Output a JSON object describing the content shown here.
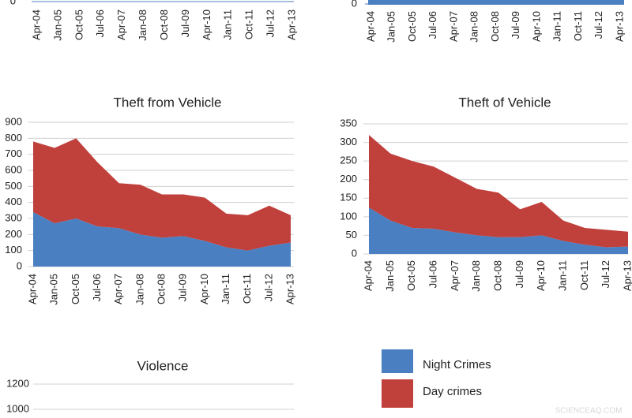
{
  "chart_data": [
    {
      "type": "area",
      "categories": [
        "Apr-04",
        "Jan-05",
        "Oct-05",
        "Jul-06",
        "Apr-07",
        "Jan-08",
        "Oct-08",
        "Jul-09",
        "Apr-10",
        "Jan-11",
        "Oct-11",
        "Jul-12",
        "Apr-13"
      ],
      "yticks": [
        0
      ]
    },
    {
      "type": "area",
      "categories": [
        "Apr-04",
        "Jan-05",
        "Oct-05",
        "Jul-06",
        "Apr-07",
        "Jan-08",
        "Oct-08",
        "Jul-09",
        "Apr-10",
        "Jan-11",
        "Oct-11",
        "Jul-12",
        "Apr-13"
      ],
      "yticks": [
        0
      ]
    },
    {
      "type": "area",
      "stacked": true,
      "title": "Theft from Vehicle",
      "categories": [
        "Apr-04",
        "Jan-05",
        "Oct-05",
        "Jul-06",
        "Apr-07",
        "Jan-08",
        "Oct-08",
        "Jul-09",
        "Apr-10",
        "Jan-11",
        "Oct-11",
        "Jul-12",
        "Apr-13"
      ],
      "series": [
        {
          "name": "Night Crimes",
          "color": "#4a7fc1",
          "values": [
            340,
            270,
            300,
            250,
            240,
            200,
            180,
            190,
            160,
            120,
            100,
            130,
            150
          ]
        },
        {
          "name": "Day crimes",
          "color": "#c0403c",
          "values": [
            440,
            470,
            500,
            400,
            280,
            310,
            270,
            260,
            270,
            210,
            220,
            250,
            170
          ]
        }
      ],
      "ylim": [
        0,
        900
      ],
      "yticks": [
        0,
        100,
        200,
        300,
        400,
        500,
        600,
        700,
        800,
        900
      ],
      "grid": true
    },
    {
      "type": "area",
      "stacked": true,
      "title": "Theft of Vehicle",
      "categories": [
        "Apr-04",
        "Jan-05",
        "Oct-05",
        "Jul-06",
        "Apr-07",
        "Jan-08",
        "Oct-08",
        "Jul-09",
        "Apr-10",
        "Jan-11",
        "Oct-11",
        "Jul-12",
        "Apr-13"
      ],
      "series": [
        {
          "name": "Night Crimes",
          "color": "#4a7fc1",
          "values": [
            125,
            90,
            70,
            68,
            58,
            50,
            45,
            45,
            50,
            35,
            25,
            18,
            20
          ]
        },
        {
          "name": "Day crimes",
          "color": "#c0403c",
          "values": [
            195,
            180,
            180,
            167,
            147,
            125,
            120,
            75,
            90,
            55,
            45,
            47,
            40
          ]
        }
      ],
      "ylim": [
        0,
        350
      ],
      "yticks": [
        0,
        50,
        100,
        150,
        200,
        250,
        300,
        350
      ],
      "grid": true
    },
    {
      "type": "area",
      "title": "Violence",
      "ylim": [
        0,
        1200
      ],
      "yticks": [
        1000,
        1200
      ],
      "grid": true
    }
  ],
  "watermark": "SCIENCEAQ.COM"
}
